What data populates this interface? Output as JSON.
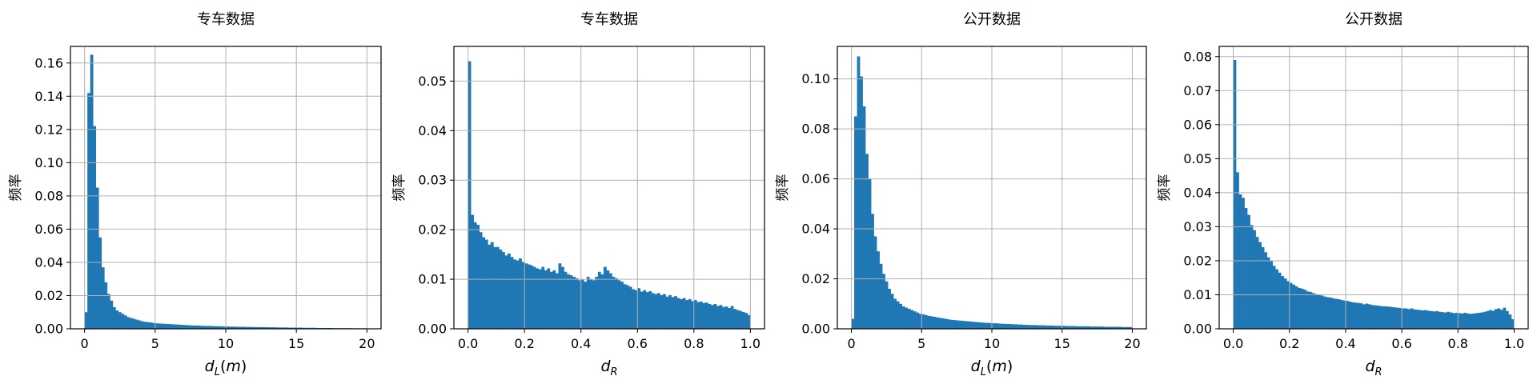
{
  "chart_data": [
    {
      "type": "bar",
      "title": "专车数据",
      "xlabel": {
        "base": "d",
        "sub": "L",
        "suffix": "(m)"
      },
      "ylabel": "频率",
      "xlim": [
        -1,
        21
      ],
      "ylim": [
        0,
        0.17
      ],
      "xticks": [
        0,
        5,
        10,
        15,
        20
      ],
      "yticks": [
        0.0,
        0.02,
        0.04,
        0.06,
        0.08,
        0.1,
        0.12,
        0.14,
        0.16
      ],
      "ytick_decimals": 2,
      "grid": true,
      "bin_start": 0,
      "bin_width": 0.2,
      "values": [
        0.01,
        0.142,
        0.165,
        0.122,
        0.085,
        0.055,
        0.037,
        0.028,
        0.021,
        0.017,
        0.013,
        0.011,
        0.01,
        0.009,
        0.008,
        0.007,
        0.0065,
        0.006,
        0.0055,
        0.005,
        0.0045,
        0.0042,
        0.004,
        0.0038,
        0.0035,
        0.0033,
        0.0032,
        0.0031,
        0.003,
        0.0029,
        0.0028,
        0.0027,
        0.0026,
        0.0025,
        0.0024,
        0.0023,
        0.0022,
        0.0021,
        0.002,
        0.002,
        0.0019,
        0.0018,
        0.0018,
        0.0017,
        0.0017,
        0.0016,
        0.0016,
        0.0015,
        0.0015,
        0.0014,
        0.0014,
        0.0013,
        0.0013,
        0.0013,
        0.0012,
        0.0012,
        0.0012,
        0.0011,
        0.0011,
        0.0011,
        0.001,
        0.001,
        0.001,
        0.001,
        0.0009,
        0.0009,
        0.0009,
        0.0009,
        0.0008,
        0.0008,
        0.0008,
        0.0008,
        0.0007,
        0.0007,
        0.0007,
        0.0007,
        0.0007,
        0.0006,
        0.0006,
        0.0006,
        0.0006,
        0.0006,
        0.0005,
        0.0005,
        0.0005,
        0.0005,
        0.0005,
        0.0005,
        0.0004,
        0.0004,
        0.0004,
        0.0004,
        0.0004,
        0.0004,
        0.0004,
        0.0003,
        0.0003,
        0.0003,
        0.0003,
        0.0003
      ]
    },
    {
      "type": "bar",
      "title": "专车数据",
      "xlabel": {
        "base": "d",
        "sub": "R",
        "suffix": ""
      },
      "ylabel": "频率",
      "xlim": [
        -0.05,
        1.05
      ],
      "ylim": [
        0,
        0.057
      ],
      "xticks": [
        0.0,
        0.2,
        0.4,
        0.6,
        0.8,
        1.0
      ],
      "xtick_decimals": 1,
      "yticks": [
        0.0,
        0.01,
        0.02,
        0.03,
        0.04,
        0.05
      ],
      "ytick_decimals": 2,
      "grid": true,
      "bin_start": 0,
      "bin_width": 0.01,
      "values": [
        0.054,
        0.023,
        0.0215,
        0.021,
        0.0195,
        0.0185,
        0.018,
        0.017,
        0.0175,
        0.0165,
        0.0165,
        0.016,
        0.0155,
        0.0148,
        0.0152,
        0.0145,
        0.014,
        0.0138,
        0.0142,
        0.0135,
        0.0132,
        0.013,
        0.0128,
        0.0125,
        0.0122,
        0.012,
        0.0125,
        0.0118,
        0.0122,
        0.0115,
        0.0118,
        0.0112,
        0.0132,
        0.0125,
        0.0115,
        0.011,
        0.0108,
        0.0105,
        0.0102,
        0.0098,
        0.01,
        0.0095,
        0.0105,
        0.01,
        0.0098,
        0.0105,
        0.0115,
        0.011,
        0.0125,
        0.0118,
        0.0112,
        0.0105,
        0.0102,
        0.0098,
        0.0095,
        0.009,
        0.0088,
        0.0085,
        0.008,
        0.0078,
        0.0082,
        0.0075,
        0.0078,
        0.0074,
        0.0076,
        0.0072,
        0.007,
        0.0072,
        0.0068,
        0.007,
        0.0065,
        0.0068,
        0.0064,
        0.0066,
        0.0062,
        0.006,
        0.0062,
        0.0058,
        0.006,
        0.0056,
        0.0058,
        0.0054,
        0.0055,
        0.0052,
        0.0053,
        0.005,
        0.0048,
        0.005,
        0.0046,
        0.0048,
        0.0044,
        0.0045,
        0.0042,
        0.0046,
        0.004,
        0.0038,
        0.0036,
        0.0034,
        0.0032,
        0.0028
      ]
    },
    {
      "type": "bar",
      "title": "公开数据",
      "xlabel": {
        "base": "d",
        "sub": "L",
        "suffix": "(m)"
      },
      "ylabel": "频率",
      "xlim": [
        -1,
        21
      ],
      "ylim": [
        0,
        0.113
      ],
      "xticks": [
        0,
        5,
        10,
        15,
        20
      ],
      "yticks": [
        0.0,
        0.02,
        0.04,
        0.06,
        0.08,
        0.1
      ],
      "ytick_decimals": 2,
      "grid": true,
      "bin_start": 0,
      "bin_width": 0.2,
      "values": [
        0.004,
        0.085,
        0.109,
        0.101,
        0.089,
        0.07,
        0.06,
        0.046,
        0.037,
        0.031,
        0.026,
        0.022,
        0.019,
        0.016,
        0.014,
        0.012,
        0.011,
        0.01,
        0.009,
        0.0085,
        0.008,
        0.0075,
        0.007,
        0.0065,
        0.006,
        0.0058,
        0.0055,
        0.0052,
        0.005,
        0.0048,
        0.0046,
        0.0044,
        0.0042,
        0.004,
        0.0038,
        0.0036,
        0.0035,
        0.0034,
        0.0033,
        0.0032,
        0.0031,
        0.003,
        0.0029,
        0.0028,
        0.0027,
        0.0026,
        0.0025,
        0.0024,
        0.0024,
        0.0023,
        0.0022,
        0.0022,
        0.0021,
        0.002,
        0.002,
        0.0019,
        0.0019,
        0.0018,
        0.0018,
        0.0017,
        0.0017,
        0.0016,
        0.0016,
        0.0015,
        0.0015,
        0.0015,
        0.0014,
        0.0014,
        0.0014,
        0.0013,
        0.0013,
        0.0013,
        0.0012,
        0.0012,
        0.0012,
        0.0012,
        0.0011,
        0.0011,
        0.0011,
        0.0011,
        0.001,
        0.001,
        0.001,
        0.001,
        0.001,
        0.0009,
        0.0009,
        0.0009,
        0.0009,
        0.0009,
        0.0008,
        0.0008,
        0.0008,
        0.0008,
        0.0008,
        0.0008,
        0.0007,
        0.0007,
        0.0007,
        0.0007
      ]
    },
    {
      "type": "bar",
      "title": "公开数据",
      "xlabel": {
        "base": "d",
        "sub": "R",
        "suffix": ""
      },
      "ylabel": "频率",
      "xlim": [
        -0.05,
        1.05
      ],
      "ylim": [
        0,
        0.083
      ],
      "xticks": [
        0.0,
        0.2,
        0.4,
        0.6,
        0.8,
        1.0
      ],
      "xtick_decimals": 1,
      "yticks": [
        0.0,
        0.01,
        0.02,
        0.03,
        0.04,
        0.05,
        0.06,
        0.07,
        0.08
      ],
      "ytick_decimals": 2,
      "grid": true,
      "bin_start": 0,
      "bin_width": 0.01,
      "values": [
        0.079,
        0.046,
        0.0395,
        0.0385,
        0.0355,
        0.0335,
        0.0305,
        0.029,
        0.027,
        0.0255,
        0.024,
        0.0225,
        0.021,
        0.02,
        0.0185,
        0.0175,
        0.0165,
        0.0155,
        0.0148,
        0.014,
        0.0135,
        0.013,
        0.0125,
        0.012,
        0.0118,
        0.0115,
        0.011,
        0.0108,
        0.0105,
        0.0102,
        0.01,
        0.0098,
        0.0095,
        0.0093,
        0.0092,
        0.009,
        0.0088,
        0.0087,
        0.0085,
        0.0083,
        0.0082,
        0.008,
        0.0078,
        0.0077,
        0.0076,
        0.0075,
        0.0072,
        0.0074,
        0.0072,
        0.007,
        0.0069,
        0.0068,
        0.0067,
        0.0066,
        0.0066,
        0.0065,
        0.0064,
        0.0063,
        0.0062,
        0.0061,
        0.006,
        0.006,
        0.0058,
        0.006,
        0.0057,
        0.0056,
        0.0055,
        0.0054,
        0.0055,
        0.0053,
        0.0052,
        0.0051,
        0.0052,
        0.005,
        0.0049,
        0.0048,
        0.005,
        0.0048,
        0.0046,
        0.0047,
        0.0046,
        0.0045,
        0.0047,
        0.0045,
        0.0044,
        0.0045,
        0.0046,
        0.0047,
        0.0048,
        0.005,
        0.0052,
        0.0055,
        0.0053,
        0.0058,
        0.006,
        0.0056,
        0.0062,
        0.0052,
        0.0042,
        0.0028
      ]
    }
  ]
}
